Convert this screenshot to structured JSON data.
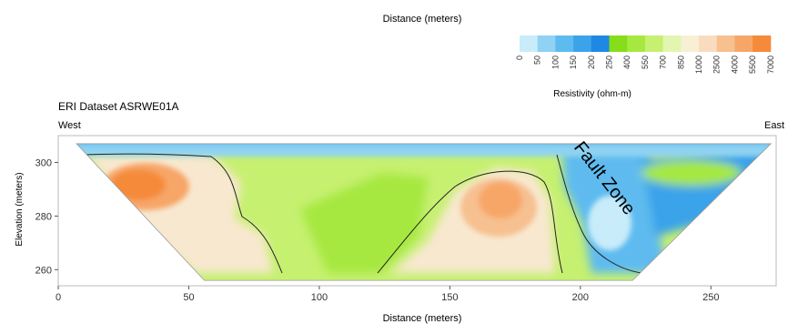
{
  "chart_data": {
    "type": "heatmap",
    "top_axis_label": "Distance (meters)",
    "title": "ERI Dataset ASRWE01A",
    "left_direction": "West",
    "right_direction": "East",
    "xlabel": "Distance (meters)",
    "ylabel": "Elevation (meters)",
    "xlim": [
      0,
      275
    ],
    "ylim": [
      254,
      310
    ],
    "xticks": [
      0,
      50,
      100,
      150,
      200,
      250
    ],
    "yticks": [
      260,
      280,
      300
    ],
    "colorbar": {
      "label": "Resistivity (ohm-m)",
      "ticks": [
        "0",
        "50",
        "100",
        "150",
        "200",
        "250",
        "400",
        "550",
        "700",
        "850",
        "1000",
        "2500",
        "4000",
        "5500",
        "7000"
      ],
      "colors": [
        "#c8ecfa",
        "#8fd2f3",
        "#5ebbef",
        "#3ba3ea",
        "#1f88e2",
        "#86dd1a",
        "#a6e840",
        "#c6f070",
        "#e2f6b0",
        "#f7f0d4",
        "#f9dcbe",
        "#f7c090",
        "#f7a668",
        "#f58a3a"
      ]
    },
    "section_outline": {
      "top_elevation": 307,
      "bottom_elevation": 256,
      "top_x_range": [
        7,
        273
      ],
      "bottom_x_range": [
        56,
        220
      ]
    },
    "annotation": "Fault Zone"
  }
}
